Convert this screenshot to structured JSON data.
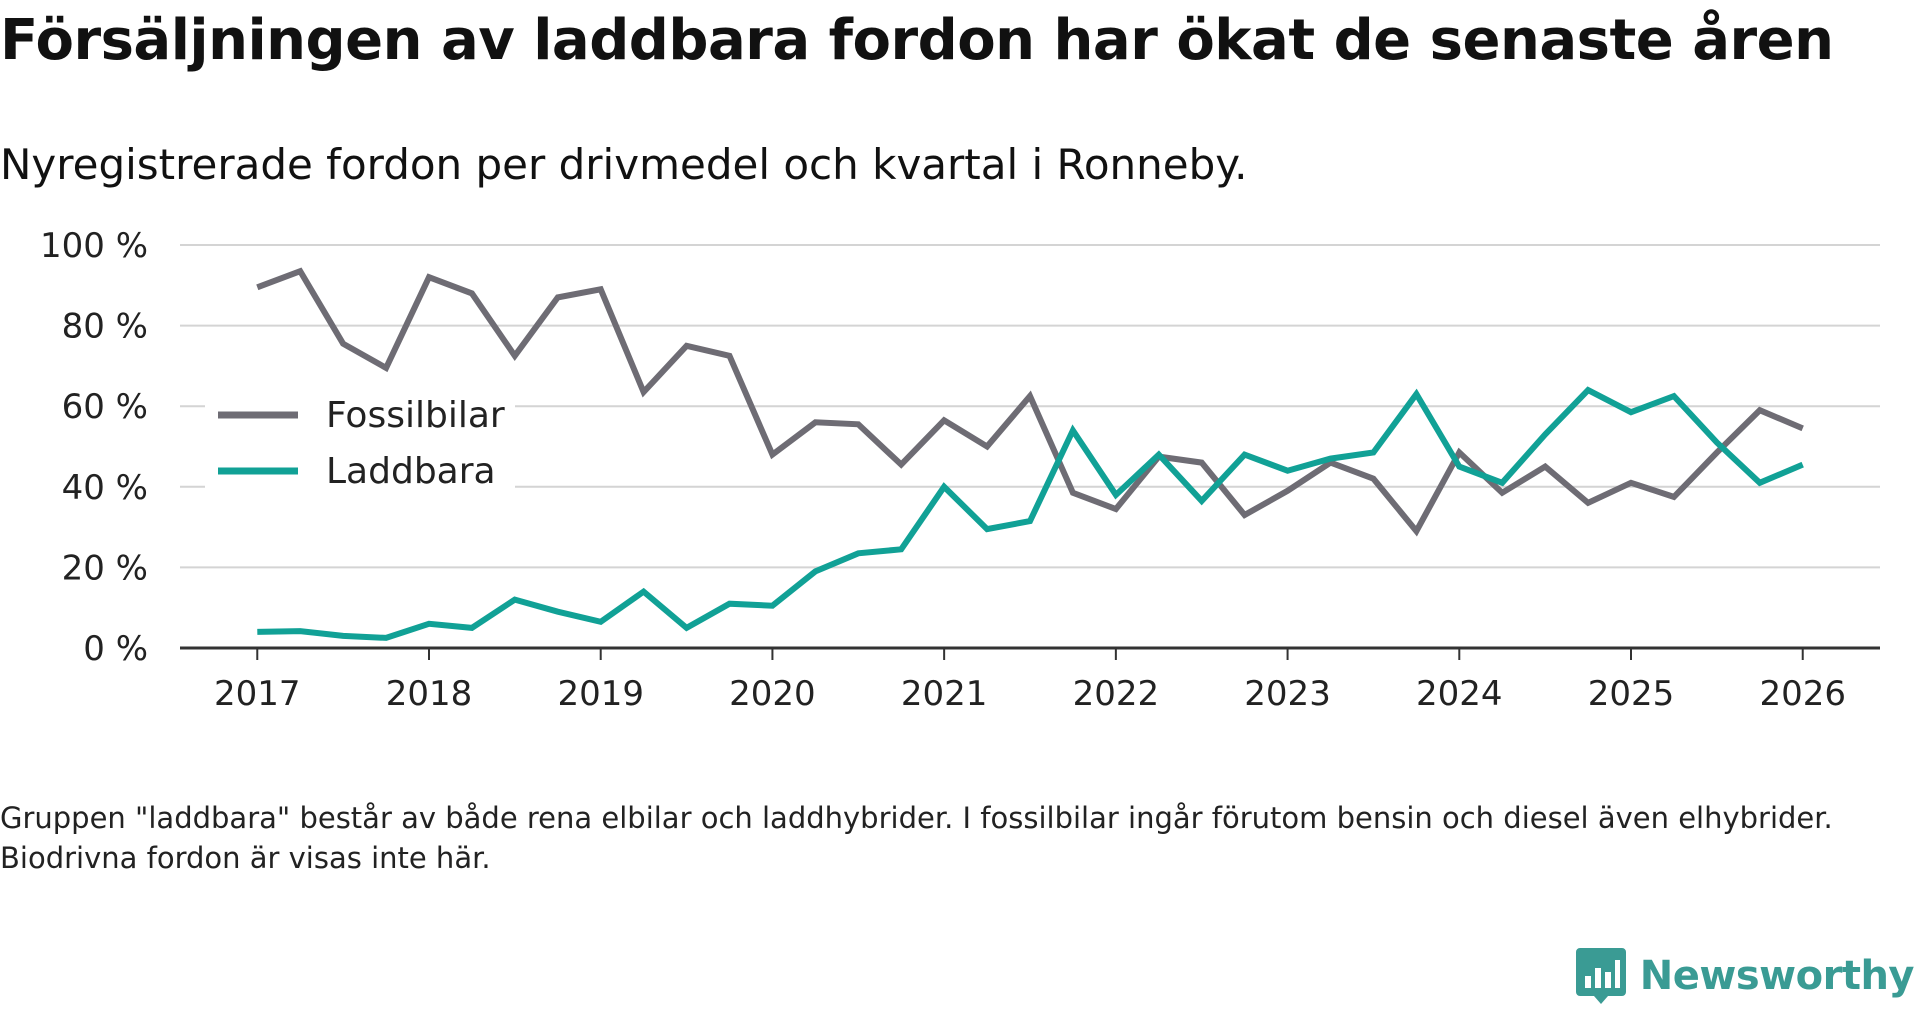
{
  "title": "Försäljningen av laddbara fordon har ökat de senaste åren",
  "subtitle": "Nyregistrerade fordon per drivmedel och kvartal i Ronneby.",
  "footnote": "Gruppen \"laddbara\" består av både rena elbilar och laddhybrider. I fossilbilar ingår förutom bensin och diesel även elhybrider. Biodrivna fordon är visas inte här.",
  "brand": {
    "name": "Newsworthy",
    "icon": "newsworthy-logo-icon"
  },
  "colors": {
    "fossil": "#6e6c74",
    "laddbara": "#11a196",
    "grid": "#d4d4d4",
    "axis": "#333333",
    "text": "#222222",
    "brand": "#3a9b94"
  },
  "chart_data": {
    "type": "line",
    "title": "Försäljningen av laddbara fordon har ökat de senaste åren",
    "xlabel": "",
    "ylabel": "",
    "ylim": [
      0,
      100
    ],
    "y_ticks": [
      0,
      20,
      40,
      60,
      80,
      100
    ],
    "y_tick_labels": [
      "0 %",
      "20 %",
      "40 %",
      "60 %",
      "80 %",
      "100 %"
    ],
    "xlim": [
      2016.55,
      2026.45
    ],
    "x_ticks": [
      2017,
      2018,
      2019,
      2020,
      2021,
      2022,
      2023,
      2024,
      2025,
      2026
    ],
    "x_tick_labels": [
      "2017",
      "2018",
      "2019",
      "2020",
      "2021",
      "2022",
      "2023",
      "2024",
      "2025",
      "2026"
    ],
    "grid": true,
    "legend_position": "left-middle",
    "x": [
      2017,
      2017.25,
      2017.5,
      2017.75,
      2018,
      2018.25,
      2018.5,
      2018.75,
      2019,
      2019.25,
      2019.5,
      2019.75,
      2020,
      2020.25,
      2020.5,
      2020.75,
      2021,
      2021.25,
      2021.5,
      2021.75,
      2022,
      2022.25,
      2022.5,
      2022.75,
      2023,
      2023.25,
      2023.5,
      2023.75,
      2024,
      2024.25,
      2024.5,
      2024.75,
      2025,
      2025.25,
      2025.5,
      2025.75,
      2026
    ],
    "series": [
      {
        "name": "Fossilbilar",
        "color": "#6e6c74",
        "values": [
          89.5,
          93.5,
          75.5,
          69.5,
          92,
          88,
          72.5,
          87,
          89,
          63.5,
          75,
          72.5,
          48,
          56,
          55.5,
          45.5,
          56.5,
          50,
          62.5,
          38.5,
          34.5,
          47.5,
          46,
          33,
          39,
          46,
          42,
          29,
          48.5,
          38.5,
          45,
          36,
          41,
          37.5,
          48.5,
          59,
          54.5
        ]
      },
      {
        "name": "Laddbara",
        "color": "#11a196",
        "values": [
          4,
          4.2,
          3,
          2.5,
          6,
          5,
          12,
          9,
          6.5,
          14,
          5,
          11,
          10.5,
          19,
          23.5,
          24.5,
          40,
          29.5,
          31.5,
          54,
          38,
          48,
          36.5,
          48,
          44,
          47,
          48.5,
          63,
          45,
          41,
          53,
          64,
          58.5,
          62.5,
          51,
          41,
          45.5
        ]
      }
    ]
  }
}
